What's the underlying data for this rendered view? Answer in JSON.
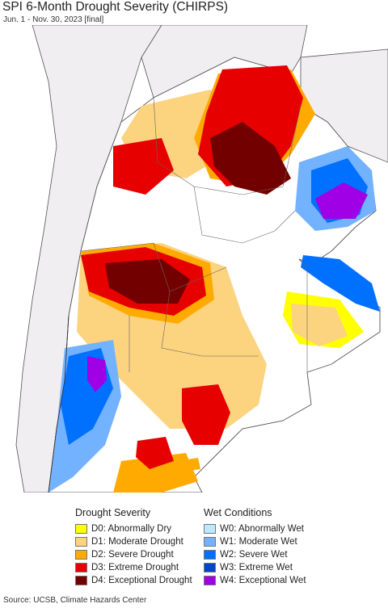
{
  "header": {
    "title": "SPI 6-Month Drought Severity (CHIRPS)",
    "subtitle": "Jun. 1 - Nov. 30, 2023 [final]"
  },
  "legend": {
    "drought": {
      "heading": "Drought Severity",
      "items": [
        {
          "label": "D0: Abnormally Dry",
          "color": "#ffff00"
        },
        {
          "label": "D1: Moderate Drought",
          "color": "#fcd37f"
        },
        {
          "label": "D2: Severe Drought",
          "color": "#ffaa00"
        },
        {
          "label": "D3: Extreme Drought",
          "color": "#e60000"
        },
        {
          "label": "D4: Exceptional Drought",
          "color": "#730000"
        }
      ]
    },
    "wet": {
      "heading": "Wet Conditions",
      "items": [
        {
          "label": "W0: Abnormally Wet",
          "color": "#bee8ff"
        },
        {
          "label": "W1: Moderate Wet",
          "color": "#73b2ff"
        },
        {
          "label": "W2: Severe Wet",
          "color": "#0070ff"
        },
        {
          "label": "W3: Extreme Wet",
          "color": "#0046c8"
        },
        {
          "label": "W4: Exceptional Wet",
          "color": "#a000e6"
        }
      ]
    }
  },
  "footer": {
    "source": "Source: UCSB, Climate Hazards Center"
  }
}
